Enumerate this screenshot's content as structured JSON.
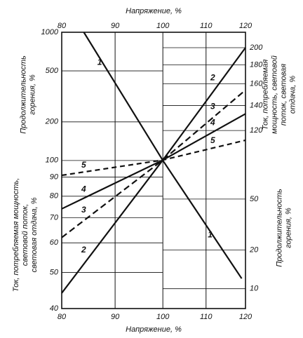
{
  "chart_data": {
    "type": "line",
    "x_title_top": "Напряжение, %",
    "x_title_bottom": "Напряжение, %",
    "left_upper_title": [
      "Продолжительность",
      "горения, %"
    ],
    "left_lower_title": [
      "Ток, потребляемая мощность,",
      "световой поток,",
      "световая отдача, %"
    ],
    "right_upper_title": [
      "Ток, потребляемая",
      "мощность, световой",
      "поток, световая",
      "отдача, %"
    ],
    "right_lower_title": [
      "Продолжительность",
      "горения, %"
    ],
    "xlim": [
      80,
      120
    ],
    "xticks": [
      80,
      90,
      100,
      110,
      120
    ],
    "xlog": true,
    "ylim": [
      40,
      220
    ],
    "yticks": [
      40,
      50,
      60,
      70,
      80,
      90,
      120,
      140,
      160,
      180,
      200
    ],
    "ylog": true,
    "y2lim": [
      7,
      1000
    ],
    "y2ticks": [
      10,
      20,
      50,
      100,
      200,
      500,
      1000
    ],
    "y2log": true,
    "grid": true,
    "series": [
      {
        "name": "1",
        "color": "#111111",
        "axis": "y2",
        "dash": "none",
        "x": [
          84,
          100,
          119
        ],
        "values": [
          1000,
          100,
          12
        ]
      },
      {
        "name": "2",
        "color": "#111111",
        "dash": "none",
        "x": [
          80,
          100,
          120
        ],
        "values": [
          44,
          100,
          200
        ]
      },
      {
        "name": "3",
        "color": "#111111",
        "dash": "9 5",
        "x": [
          80,
          100,
          120
        ],
        "values": [
          62,
          100,
          154
        ]
      },
      {
        "name": "4",
        "color": "#111111",
        "dash": "none",
        "x": [
          80,
          100,
          120
        ],
        "values": [
          74,
          100,
          133
        ]
      },
      {
        "name": "5",
        "color": "#111111",
        "dash": "7 5",
        "x": [
          80,
          100,
          120
        ],
        "values": [
          91,
          100,
          113
        ]
      }
    ]
  }
}
